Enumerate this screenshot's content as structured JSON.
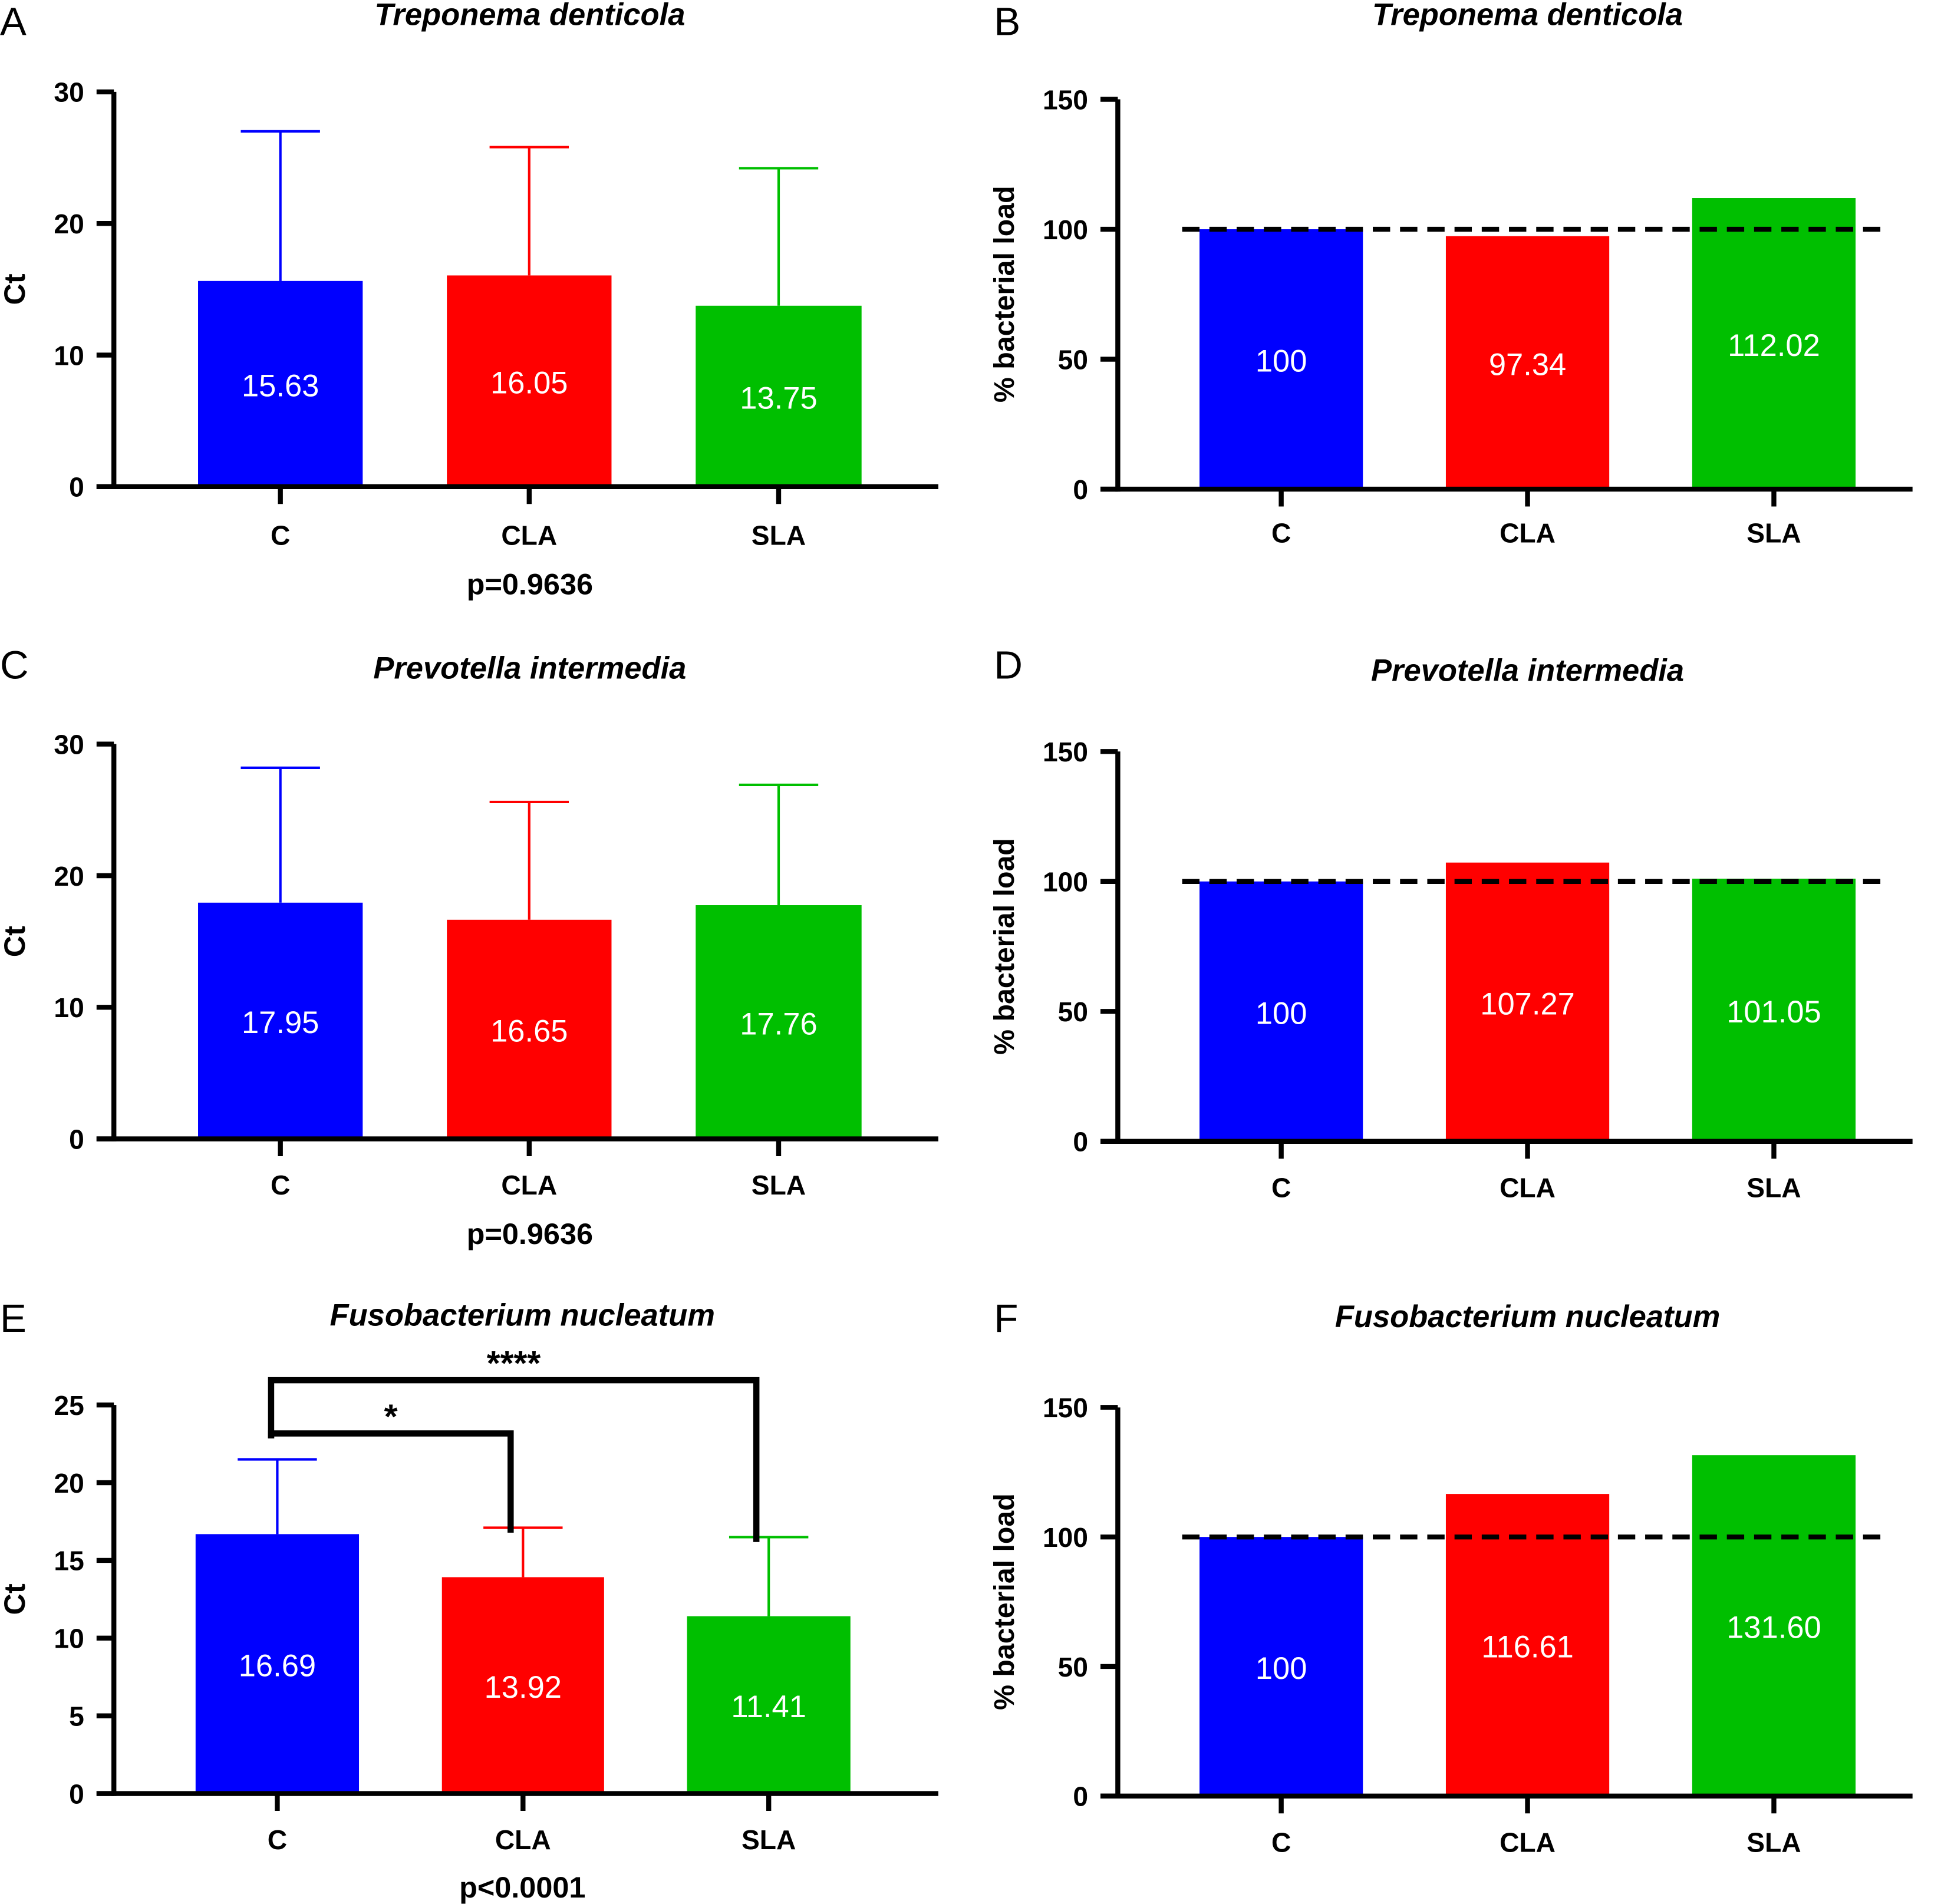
{
  "chart_data": [
    {
      "panel": "A",
      "type": "bar",
      "title": "Treponema denticola",
      "ylabel": "Ct",
      "ylim": [
        0,
        30
      ],
      "yticks": [
        0,
        10,
        20,
        30
      ],
      "categories": [
        "C",
        "CLA",
        "SLA"
      ],
      "values": [
        15.63,
        16.05,
        13.75
      ],
      "value_labels": [
        "15.63",
        "16.05",
        "13.75"
      ],
      "error_upper": [
        27.0,
        25.8,
        24.2
      ],
      "note": "p=0.9636",
      "significance": []
    },
    {
      "panel": "B",
      "type": "bar",
      "title": "Treponema denticola",
      "ylabel": "% bacterial load",
      "ylim": [
        0,
        150
      ],
      "yticks": [
        0,
        50,
        100,
        150
      ],
      "categories": [
        "C",
        "CLA",
        "SLA"
      ],
      "values": [
        100,
        97.34,
        112.02
      ],
      "value_labels": [
        "100",
        "97.34",
        "112.02"
      ],
      "reference_line": 100
    },
    {
      "panel": "C",
      "type": "bar",
      "title": "Prevotella intermedia",
      "ylabel": "Ct",
      "ylim": [
        0,
        30
      ],
      "yticks": [
        0,
        10,
        20,
        30
      ],
      "categories": [
        "C",
        "CLA",
        "SLA"
      ],
      "values": [
        17.95,
        16.65,
        17.76
      ],
      "value_labels": [
        "17.95",
        "16.65",
        "17.76"
      ],
      "error_upper": [
        28.2,
        25.6,
        26.9
      ],
      "note": "p=0.9636",
      "significance": []
    },
    {
      "panel": "D",
      "type": "bar",
      "title": "Prevotella intermedia",
      "ylabel": "% bacterial load",
      "ylim": [
        0,
        150
      ],
      "yticks": [
        0,
        50,
        100,
        150
      ],
      "categories": [
        "C",
        "CLA",
        "SLA"
      ],
      "values": [
        100,
        107.27,
        101.05
      ],
      "value_labels": [
        "100",
        "107.27",
        "101.05"
      ],
      "reference_line": 100
    },
    {
      "panel": "E",
      "type": "bar",
      "title": "Fusobacterium nucleatum",
      "ylabel": "Ct",
      "ylim": [
        0,
        25
      ],
      "yticks": [
        0,
        5,
        10,
        15,
        20,
        25
      ],
      "categories": [
        "C",
        "CLA",
        "SLA"
      ],
      "values": [
        16.69,
        13.92,
        11.41
      ],
      "value_labels": [
        "16.69",
        "13.92",
        "11.41"
      ],
      "error_upper": [
        21.5,
        17.1,
        16.5
      ],
      "note": "p<0.0001",
      "significance": [
        {
          "from": "C",
          "to": "CLA",
          "label": "*"
        },
        {
          "from": "C",
          "to": "SLA",
          "label": "****"
        }
      ]
    },
    {
      "panel": "F",
      "type": "bar",
      "title": "Fusobacterium nucleatum",
      "ylabel": "% bacterial load",
      "ylim": [
        0,
        150
      ],
      "yticks": [
        0,
        50,
        100,
        150
      ],
      "categories": [
        "C",
        "CLA",
        "SLA"
      ],
      "values": [
        100,
        116.61,
        131.6
      ],
      "value_labels": [
        "100",
        "116.61",
        "131.60"
      ],
      "reference_line": 100
    }
  ],
  "colors": {
    "C": "#0000ff",
    "CLA": "#ff0000",
    "SLA": "#00bf00"
  }
}
